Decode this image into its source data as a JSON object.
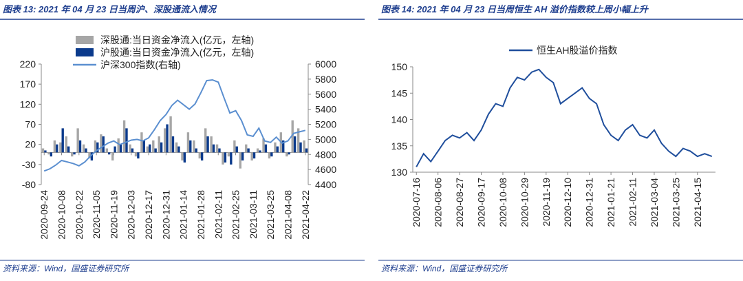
{
  "chart_data": [
    {
      "type": "combo",
      "title": "图表 13:  2021 年 04 月 23 日当周沪、深股通流入情况",
      "source": "资料来源：Wind，国盛证券研究所",
      "categories": [
        "2020-09-24",
        null,
        null,
        "2020-10-08",
        null,
        null,
        "2020-10-22",
        null,
        null,
        "2020-11-05",
        null,
        null,
        "2020-11-19",
        null,
        null,
        "2020-12-03",
        null,
        null,
        "2020-12-17",
        null,
        null,
        "2020-12-31",
        null,
        null,
        "2021-01-14",
        null,
        null,
        "2021-01-28",
        null,
        null,
        "2021-02-11",
        null,
        null,
        "2021-02-25",
        null,
        null,
        "2021-03-11",
        null,
        null,
        "2021-03-25",
        null,
        null,
        "2021-04-08",
        null,
        null,
        "2021-04-22"
      ],
      "series": [
        {
          "name": "深股通:当日资金净流入(亿元，左轴)",
          "color": "#a6a6a6",
          "values": [
            10,
            -5,
            30,
            25,
            40,
            -10,
            60,
            20,
            -15,
            30,
            45,
            10,
            -20,
            35,
            80,
            20,
            -10,
            50,
            15,
            30,
            40,
            60,
            90,
            25,
            -20,
            50,
            30,
            -15,
            60,
            40,
            20,
            -30,
            -10,
            30,
            -40,
            20,
            -20,
            10,
            35,
            -15,
            25,
            50,
            -10,
            80,
            60,
            30
          ]
        },
        {
          "name": "沪股通:当日资金净流入(亿元，左轴)",
          "color": "#0b3a8c",
          "values": [
            5,
            -10,
            20,
            60,
            15,
            -5,
            30,
            10,
            -20,
            25,
            40,
            -5,
            15,
            20,
            60,
            10,
            -15,
            30,
            20,
            10,
            25,
            70,
            40,
            15,
            -25,
            30,
            10,
            -20,
            40,
            20,
            10,
            -25,
            -30,
            15,
            -20,
            10,
            -15,
            5,
            20,
            -10,
            15,
            30,
            -5,
            40,
            25,
            10
          ]
        },
        {
          "name": "沪深300指数(右轴)",
          "color": "#5b8fd0",
          "axis": "y2",
          "values": [
            4580,
            4610,
            4660,
            4720,
            4700,
            4680,
            4650,
            4700,
            4780,
            4850,
            4900,
            4950,
            4980,
            4930,
            4960,
            4990,
            5000,
            4980,
            5020,
            5130,
            5250,
            5330,
            5450,
            5520,
            5460,
            5400,
            5470,
            5620,
            5780,
            5790,
            5760,
            5550,
            5350,
            5380,
            5250,
            5060,
            5040,
            5150,
            4980,
            4960,
            5030,
            4950,
            4980,
            5080,
            5100,
            5120
          ]
        }
      ],
      "ylim": [
        -80,
        220
      ],
      "yticks": [
        -80,
        -30,
        20,
        70,
        120,
        170,
        220
      ],
      "y2lim": [
        4400,
        6000
      ],
      "y2ticks": [
        4400,
        4600,
        4800,
        5000,
        5200,
        5400,
        5600,
        5800,
        6000
      ]
    },
    {
      "type": "line",
      "title": "图表 14:  2021 年 04 月 23 日当周恒生 AH 溢价指数较上周小幅上升",
      "source": "资料来源：Wind，国盛证券研究所",
      "categories": [
        "2020-07-16",
        null,
        null,
        "2020-08-06",
        null,
        null,
        "2020-08-27",
        null,
        null,
        "2020-09-17",
        null,
        null,
        "2020-10-08",
        null,
        null,
        "2020-10-29",
        null,
        null,
        "2020-11-19",
        null,
        null,
        "2020-12-10",
        null,
        null,
        "2020-12-31",
        null,
        null,
        "2021-01-21",
        null,
        null,
        "2021-02-11",
        null,
        null,
        "2021-03-04",
        null,
        null,
        "2021-03-25",
        null,
        null,
        "2021-04-15",
        null,
        null
      ],
      "series": [
        {
          "name": "恒生AH股溢价指数",
          "color": "#1f4e9c",
          "values": [
            131,
            133.5,
            132,
            134,
            136,
            137,
            136.5,
            137.5,
            136,
            138,
            141,
            143,
            142.5,
            146,
            148,
            147.5,
            149,
            149.5,
            148,
            147,
            143,
            144,
            145,
            146,
            144,
            143,
            139,
            137,
            136,
            138,
            139,
            137,
            136.5,
            138,
            135.5,
            134,
            133,
            134.5,
            134,
            133,
            133.5,
            133
          ]
        }
      ],
      "ylim": [
        130,
        150
      ],
      "yticks": [
        130,
        135,
        140,
        145,
        150
      ]
    }
  ]
}
